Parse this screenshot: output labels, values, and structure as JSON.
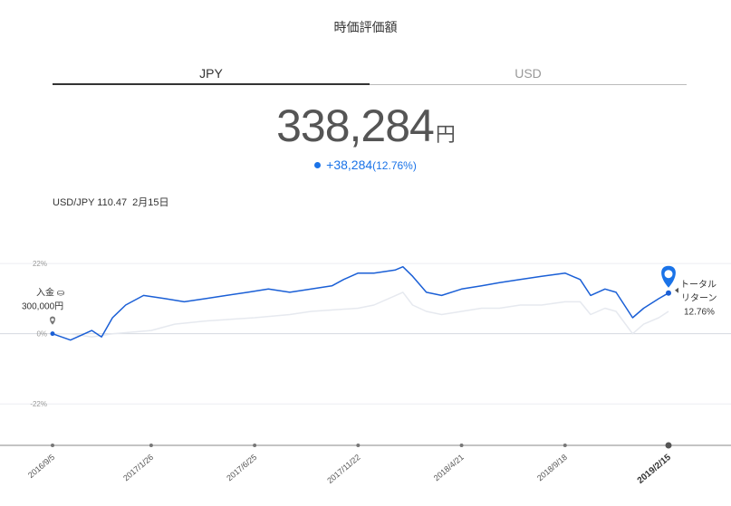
{
  "header": {
    "title": "時価評価額"
  },
  "tabs": [
    {
      "label": "JPY",
      "active": true
    },
    {
      "label": "USD",
      "active": false
    }
  ],
  "summary": {
    "value": "338,284",
    "unit": "円",
    "change": "+38,284",
    "change_pct": "(12.76%)"
  },
  "fx": {
    "pair": "USD/JPY 110.47",
    "date": "2月15日"
  },
  "deposit": {
    "label": "入金",
    "amount": "300,000円"
  },
  "total_return": {
    "line1": "トータル",
    "line2": "リターン",
    "pct": "12.76%"
  },
  "colors": {
    "accent": "#1a5fd6",
    "benchmark": "#e6e9ef",
    "dot": "#1a73e8"
  },
  "chart_data": {
    "type": "line",
    "y_ticks": [
      "22%",
      "0%",
      "-22%"
    ],
    "ylim": [
      -35,
      28
    ],
    "x_ticks": [
      "2016/9/5",
      "2017/1/26",
      "2017/6/25",
      "2017/11/22",
      "2018/4/21",
      "2018/9/18",
      "2019/2/15"
    ],
    "series": [
      {
        "role": "portfolio",
        "x": [
          "2016/9/5",
          "2016/10/1",
          "2016/11/1",
          "2016/11/15",
          "2016/12/1",
          "2016/12/20",
          "2017/1/15",
          "2017/2/15",
          "2017/3/15",
          "2017/4/15",
          "2017/5/15",
          "2017/6/15",
          "2017/7/15",
          "2017/8/15",
          "2017/9/15",
          "2017/10/15",
          "2017/11/1",
          "2017/11/22",
          "2017/12/15",
          "2018/1/15",
          "2018/1/26",
          "2018/2/9",
          "2018/3/1",
          "2018/3/23",
          "2018/4/21",
          "2018/5/20",
          "2018/6/15",
          "2018/7/15",
          "2018/8/15",
          "2018/9/18",
          "2018/10/10",
          "2018/10/25",
          "2018/11/15",
          "2018/12/1",
          "2018/12/25",
          "2019/1/10",
          "2019/2/1",
          "2019/2/15"
        ],
        "y": [
          0,
          -2,
          1,
          -1,
          5,
          9,
          12,
          11,
          10,
          11,
          12,
          13,
          14,
          13,
          14,
          15,
          17,
          19,
          19,
          20,
          21,
          18,
          13,
          12,
          14,
          15,
          16,
          17,
          18,
          19,
          17,
          12,
          14,
          13,
          5,
          8,
          11,
          12.76
        ]
      },
      {
        "role": "benchmark",
        "x": [
          "2016/9/5",
          "2016/10/1",
          "2016/11/1",
          "2016/12/1",
          "2017/1/26",
          "2017/3/1",
          "2017/4/15",
          "2017/6/25",
          "2017/8/15",
          "2017/9/15",
          "2017/11/22",
          "2017/12/15",
          "2018/1/26",
          "2018/2/9",
          "2018/3/1",
          "2018/3/23",
          "2018/4/21",
          "2018/5/20",
          "2018/6/15",
          "2018/7/15",
          "2018/8/15",
          "2018/9/18",
          "2018/10/10",
          "2018/10/25",
          "2018/11/15",
          "2018/12/1",
          "2018/12/25",
          "2019/1/10",
          "2019/2/1",
          "2019/2/15"
        ],
        "y": [
          0,
          0,
          -1,
          0,
          1,
          3,
          4,
          5,
          6,
          7,
          8,
          9,
          13,
          9,
          7,
          6,
          7,
          8,
          8,
          9,
          9,
          10,
          10,
          6,
          8,
          7,
          0,
          3,
          5,
          7
        ]
      }
    ]
  }
}
